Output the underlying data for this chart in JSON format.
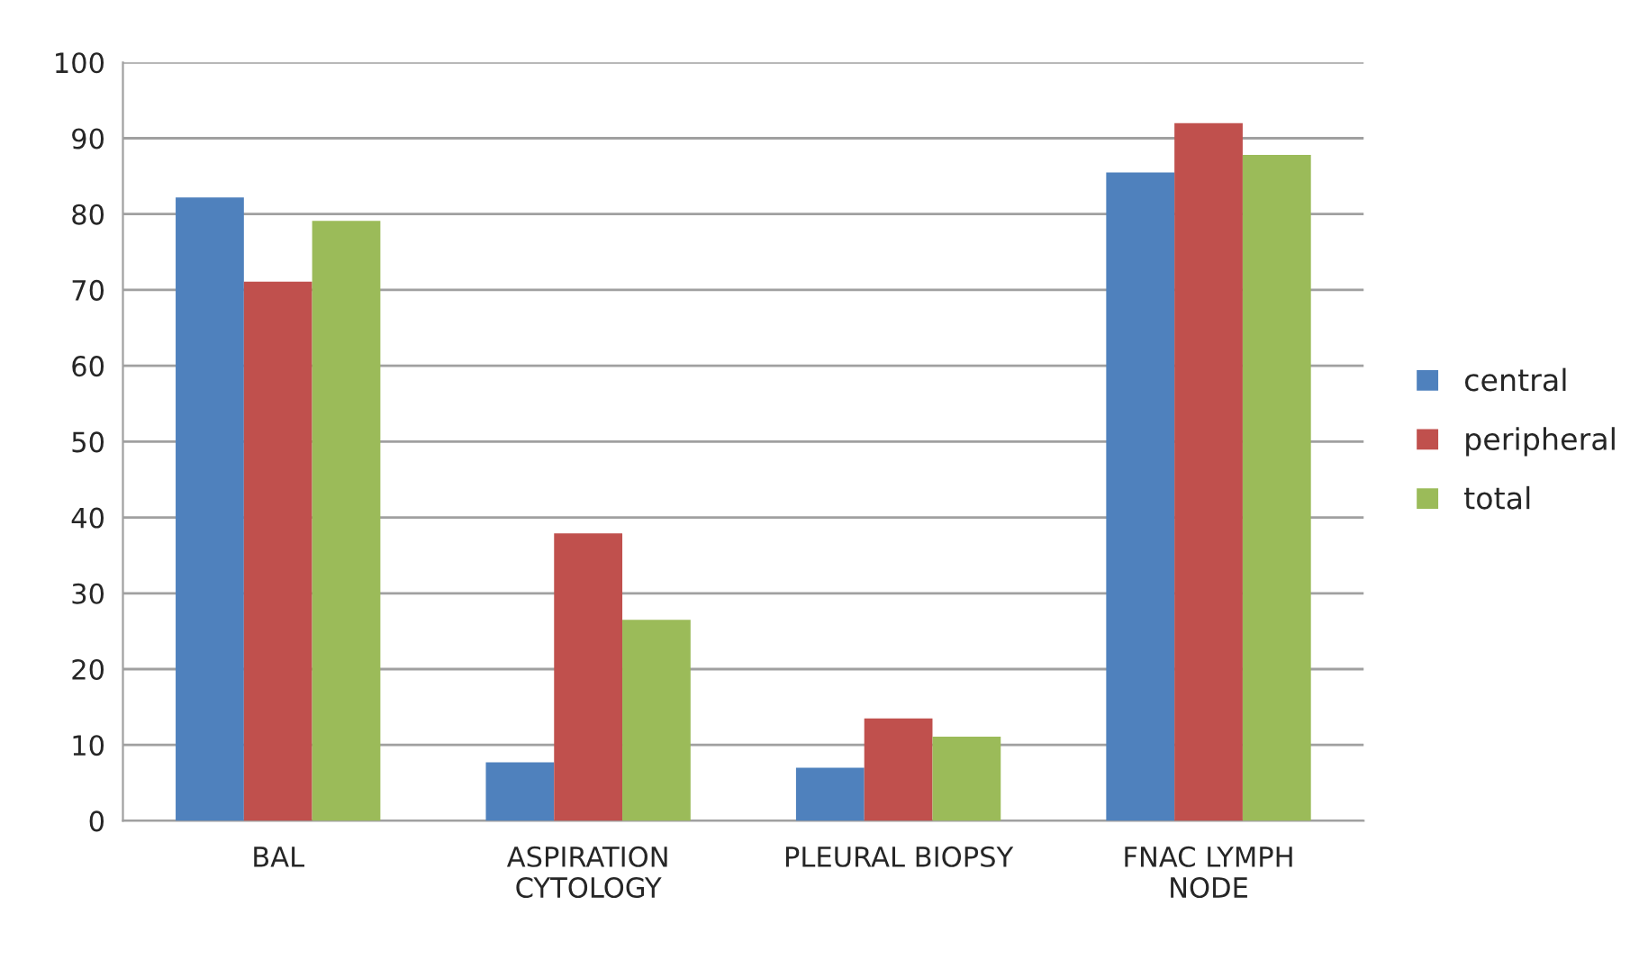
{
  "chart_data": {
    "type": "bar",
    "categories": [
      "BAL",
      "ASPIRATION\nCYTOLOGY",
      "PLEURAL BIOPSY",
      "FNAC LYMPH\nNODE"
    ],
    "series": [
      {
        "name": "central",
        "color": "#4f81bd",
        "values": [
          82.2,
          7.7,
          7.0,
          85.5
        ]
      },
      {
        "name": "peripheral",
        "color": "#c0504d",
        "values": [
          71.1,
          37.9,
          13.5,
          92.0
        ]
      },
      {
        "name": "total",
        "color": "#9bbb59",
        "values": [
          79.1,
          26.5,
          11.1,
          87.8
        ]
      }
    ],
    "ylim": [
      0,
      100
    ],
    "yticks": [
      0,
      10,
      20,
      30,
      40,
      50,
      60,
      70,
      80,
      90,
      100
    ],
    "grid": "y",
    "legend": "right"
  }
}
